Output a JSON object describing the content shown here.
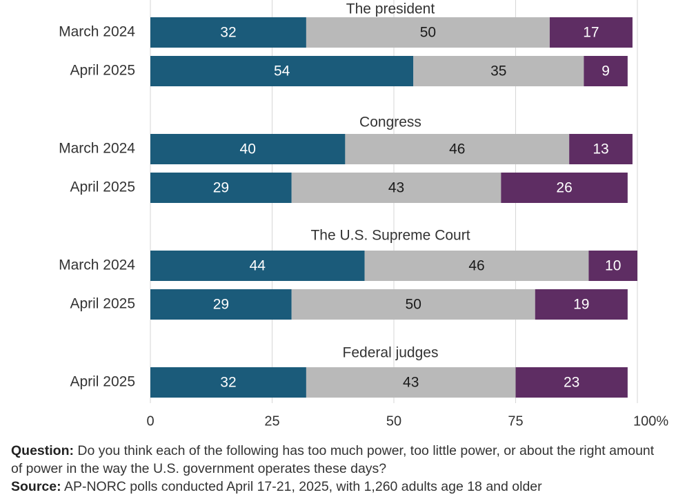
{
  "colors": {
    "too_much": "#1b5b7a",
    "about_right": "#b9b9b9",
    "too_little": "#5e2d63",
    "grid": "#d6d6d6",
    "text": "#333333"
  },
  "chart_data": {
    "type": "bar",
    "orientation": "horizontal",
    "stacked": true,
    "xlim": [
      0,
      100
    ],
    "x_ticks": [
      "0",
      "25",
      "50",
      "75",
      "100%"
    ],
    "grid": true,
    "groups": [
      {
        "title": "The president",
        "rows": [
          {
            "label": "March 2024",
            "values": [
              32,
              50,
              17
            ]
          },
          {
            "label": "April 2025",
            "values": [
              54,
              35,
              9
            ]
          }
        ]
      },
      {
        "title": "Congress",
        "rows": [
          {
            "label": "March 2024",
            "values": [
              40,
              46,
              13
            ]
          },
          {
            "label": "April 2025",
            "values": [
              29,
              43,
              26
            ]
          }
        ]
      },
      {
        "title": "The U.S. Supreme Court",
        "rows": [
          {
            "label": "March 2024",
            "values": [
              44,
              46,
              10
            ]
          },
          {
            "label": "April 2025",
            "values": [
              29,
              50,
              19
            ]
          }
        ]
      },
      {
        "title": "Federal judges",
        "rows": [
          {
            "label": "April 2025",
            "values": [
              32,
              43,
              23
            ]
          }
        ]
      }
    ]
  },
  "footnotes": {
    "question_label": "Question:",
    "question_text": "Do you think each of the following has too much power, too little power, or about the right amount of power in the way the U.S. government operates these days?",
    "source_label": "Source:",
    "source_text": "AP-NORC polls conducted April 17-21, 2025, with 1,260 adults age 18 and older"
  }
}
